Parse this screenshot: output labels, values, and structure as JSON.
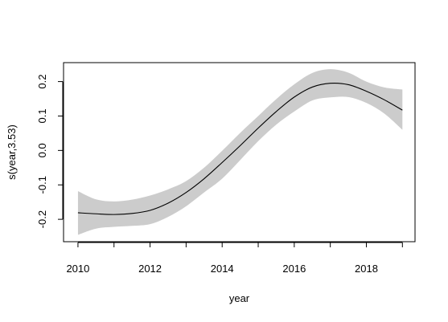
{
  "chart_data": {
    "type": "line",
    "title": "",
    "xlabel": "year",
    "ylabel": "s(year,3.53)",
    "xlim": [
      2009.6,
      2019.35
    ],
    "ylim": [
      -0.265,
      0.255
    ],
    "grid": false,
    "x_ticks": [
      2010,
      2012,
      2014,
      2016,
      2018
    ],
    "x_minor_ticks": [
      2011,
      2013,
      2015,
      2017,
      2019
    ],
    "y_ticks": [
      -0.2,
      -0.1,
      0.0,
      0.1,
      0.2
    ],
    "x_tick_labels": [
      "2010",
      "2012",
      "2014",
      "2016",
      "2018"
    ],
    "y_tick_labels": [
      "-0.2",
      "-0.1",
      "0.0",
      "0.1",
      "0.2"
    ],
    "band_color": "#cccccc",
    "line_color": "#000000",
    "x": [
      2010,
      2010.5,
      2011,
      2011.5,
      2012,
      2012.5,
      2013,
      2013.5,
      2014,
      2014.5,
      2015,
      2015.5,
      2016,
      2016.5,
      2017,
      2017.5,
      2018,
      2018.5,
      2019
    ],
    "fit": [
      -0.181,
      -0.184,
      -0.186,
      -0.183,
      -0.174,
      -0.153,
      -0.122,
      -0.082,
      -0.035,
      0.014,
      0.065,
      0.113,
      0.155,
      0.184,
      0.195,
      0.191,
      0.172,
      0.147,
      0.117
    ],
    "upper": [
      -0.118,
      -0.142,
      -0.148,
      -0.143,
      -0.131,
      -0.113,
      -0.089,
      -0.05,
      -0.001,
      0.051,
      0.1,
      0.149,
      0.192,
      0.225,
      0.236,
      0.226,
      0.2,
      0.183,
      0.177
    ],
    "lower": [
      -0.245,
      -0.227,
      -0.222,
      -0.219,
      -0.214,
      -0.193,
      -0.162,
      -0.122,
      -0.082,
      -0.028,
      0.027,
      0.075,
      0.113,
      0.145,
      0.154,
      0.155,
      0.138,
      0.107,
      0.06
    ]
  }
}
